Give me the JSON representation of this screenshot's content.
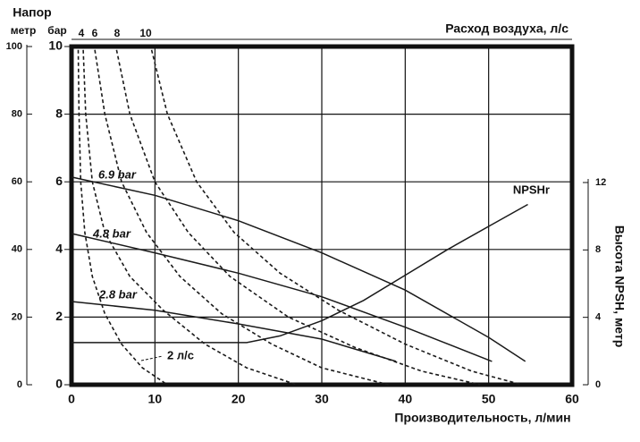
{
  "chart_data": {
    "type": "line",
    "y_label": "Напор",
    "y_metre": {
      "label": "метр",
      "lim": [
        0,
        100
      ],
      "ticks": [
        0,
        20,
        40,
        60,
        80,
        100
      ]
    },
    "y_bar_label": "бар",
    "ylim": [
      0,
      10
    ],
    "yticks": [
      0,
      2,
      4,
      6,
      8,
      10
    ],
    "y2_label": "Высота NPSH, метр",
    "y2lim": [
      0,
      12
    ],
    "y2ticks": [
      0,
      4,
      8,
      12
    ],
    "x_label": "Производительность, л/мин",
    "xlim": [
      0,
      60
    ],
    "xticks": [
      0,
      10,
      20,
      30,
      40,
      50,
      60
    ],
    "top_axis": {
      "label": "Расход воздуха, л/с",
      "ticks": [
        4,
        6,
        8,
        10
      ]
    },
    "grid": true,
    "series": [
      {
        "name": "6.9 bar",
        "color": "#1a1a1a",
        "style": "solid",
        "x": [
          0,
          10,
          20,
          30,
          40,
          50,
          54.4
        ],
        "values": [
          6.14,
          5.6,
          4.85,
          3.9,
          2.8,
          1.4,
          0.69
        ]
      },
      {
        "name": "4.8 bar",
        "color": "#1a1a1a",
        "style": "solid",
        "x": [
          0,
          10,
          20,
          30,
          40,
          50.4
        ],
        "values": [
          4.47,
          3.9,
          3.3,
          2.6,
          1.7,
          0.69
        ]
      },
      {
        "name": "2.8 bar",
        "color": "#1a1a1a",
        "style": "solid",
        "x": [
          0,
          10,
          20,
          30,
          38.9
        ],
        "values": [
          2.46,
          2.2,
          1.8,
          1.35,
          0.69
        ]
      },
      {
        "name": "NPSHr",
        "color": "#1a1a1a",
        "style": "solid",
        "axis": "y2",
        "x": [
          0,
          21,
          25,
          30,
          35,
          40,
          45,
          50,
          54.7
        ],
        "values": [
          2.5,
          2.5,
          2.9,
          3.8,
          5.0,
          6.5,
          8.0,
          9.4,
          10.7
        ]
      },
      {
        "name": "2 л/с",
        "color": "#1a1a1a",
        "style": "dashed",
        "x": [
          0.8,
          0.9,
          1.1,
          1.6,
          2.5,
          4,
          6,
          8.5,
          11.5
        ],
        "values": [
          9.9,
          8,
          6,
          4.5,
          3.2,
          2.1,
          1.2,
          0.5,
          0
        ]
      },
      {
        "color": "#1a1a1a",
        "style": "dashed",
        "x": [
          1.4,
          1.7,
          2.5,
          4,
          7,
          11,
          16,
          21,
          27
        ],
        "values": [
          9.9,
          8,
          6,
          4.5,
          3.2,
          2.2,
          1.2,
          0.5,
          0
        ]
      },
      {
        "color": "#1a1a1a",
        "style": "dashed",
        "x": [
          2.8,
          4,
          6,
          9,
          13,
          18,
          24,
          30,
          38
        ],
        "values": [
          9.9,
          8,
          6,
          4.5,
          3.2,
          2.1,
          1.2,
          0.5,
          0
        ]
      },
      {
        "color": "#1a1a1a",
        "style": "dashed",
        "x": [
          5.4,
          7,
          10,
          14,
          19,
          26,
          34,
          42,
          49
        ],
        "values": [
          9.9,
          8,
          6,
          4.5,
          3.2,
          2.0,
          1.1,
          0.4,
          0
        ]
      },
      {
        "color": "#1a1a1a",
        "style": "dashed",
        "x": [
          9.6,
          11.5,
          15,
          19.5,
          25,
          32,
          40,
          48,
          54
        ],
        "values": [
          9.9,
          8,
          6,
          4.5,
          3.3,
          2.2,
          1.2,
          0.4,
          0
        ]
      }
    ]
  }
}
